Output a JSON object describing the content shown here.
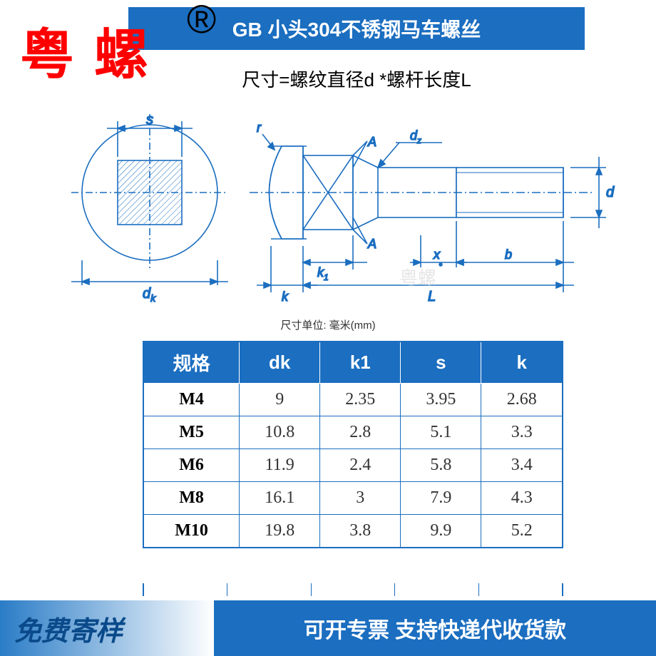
{
  "title_banner": "GB    小头304不锈钢马车螺丝",
  "brand_overlay": "粤螺",
  "reg_mark": "®",
  "subtitle": "尺寸=螺纹直径d *螺杆长度L",
  "watermark": "粤螺",
  "unit_label": "尺寸单位: 毫米(mm)",
  "diagram": {
    "stroke_color": "#1b6ec0",
    "fill_dim": "#e8eef8",
    "labels": {
      "s": "s",
      "dk": "d",
      "dk_sub": "k",
      "r": "r",
      "k": "k",
      "k1": "k",
      "k1_sub": "1",
      "A1": "A",
      "A2": "A",
      "dz": "d",
      "dz_sub": "z",
      "L": "L",
      "b": "b",
      "x": "x",
      "d": "d"
    }
  },
  "table": {
    "headers": [
      "规格",
      "dk",
      "k1",
      "s",
      "k"
    ],
    "rows": [
      [
        "M4",
        "9",
        "2.35",
        "3.95",
        "2.68"
      ],
      [
        "M5",
        "10.8",
        "2.8",
        "5.1",
        "3.3"
      ],
      [
        "M6",
        "11.9",
        "2.4",
        "5.8",
        "3.4"
      ],
      [
        "M8",
        "16.1",
        "3",
        "7.9",
        "4.3"
      ],
      [
        "M10",
        "19.8",
        "3.8",
        "9.9",
        "5.2"
      ]
    ],
    "cutoff": [
      "",
      "",
      "",
      "",
      ""
    ]
  },
  "footer": {
    "left": "免费寄样",
    "right": "可开专票 支持快递代收货款"
  }
}
